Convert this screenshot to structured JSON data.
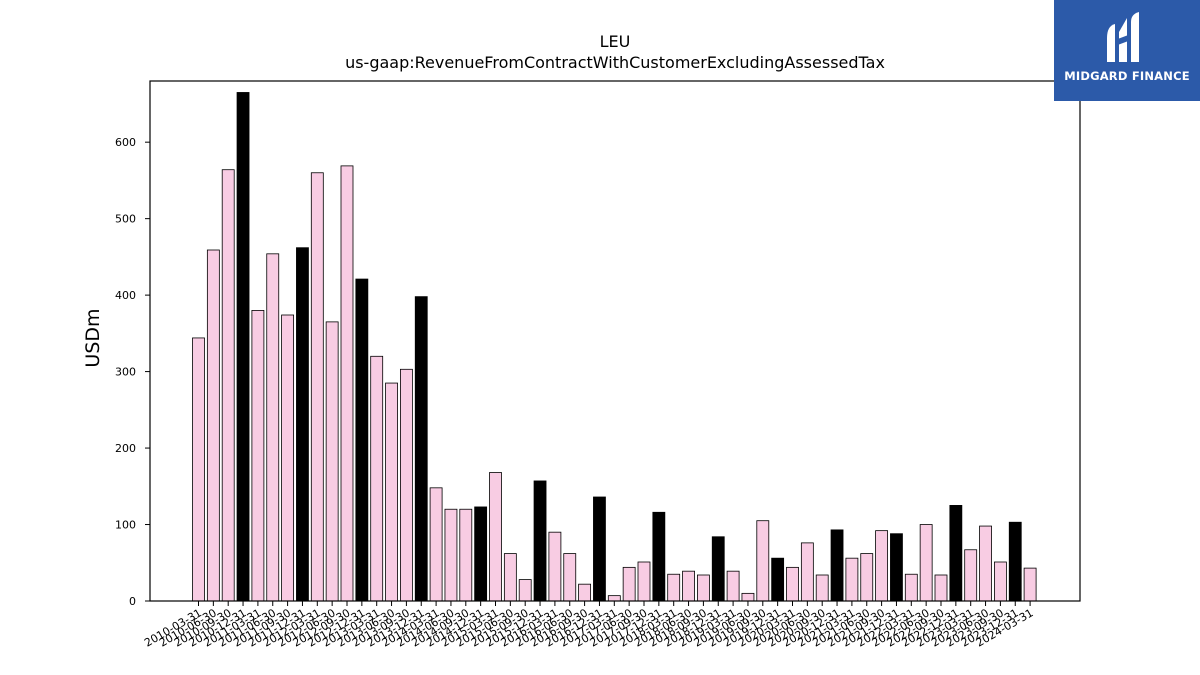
{
  "chart_data": {
    "type": "bar",
    "title": "LEU",
    "subtitle": "us-gaap:RevenueFromContractWithCustomerExcludingAssessedTax",
    "xlabel": "",
    "ylabel": "USDm",
    "ylim": [
      0,
      680
    ],
    "yticks": [
      0,
      100,
      200,
      300,
      400,
      500,
      600
    ],
    "grid": false,
    "legend": "none",
    "colors": {
      "quarter": "#f8cce3",
      "fiscal_year_end": "#000000",
      "edge": "#000000"
    },
    "categories": [
      "2010-03-31",
      "2010-06-30",
      "2010-09-30",
      "2010-12-31",
      "2011-03-31",
      "2011-06-30",
      "2011-09-30",
      "2011-12-31",
      "2012-03-31",
      "2012-06-30",
      "2012-09-30",
      "2012-12-31",
      "2013-03-31",
      "2013-06-30",
      "2013-09-30",
      "2013-12-31",
      "2014-03-31",
      "2014-06-30",
      "2014-09-30",
      "2014-12-31",
      "2015-03-31",
      "2015-06-30",
      "2015-09-30",
      "2015-12-31",
      "2016-03-31",
      "2016-06-30",
      "2016-09-30",
      "2016-12-31",
      "2017-03-31",
      "2017-06-30",
      "2017-09-30",
      "2017-12-31",
      "2018-03-31",
      "2018-06-30",
      "2018-09-30",
      "2018-12-31",
      "2019-03-31",
      "2019-06-30",
      "2019-09-30",
      "2019-12-31",
      "2020-03-31",
      "2020-06-30",
      "2020-09-30",
      "2020-12-31",
      "2021-03-31",
      "2021-06-30",
      "2021-09-30",
      "2021-12-31",
      "2022-03-31",
      "2022-06-30",
      "2022-09-30",
      "2022-12-31",
      "2023-03-31",
      "2023-06-30",
      "2023-09-30",
      "2023-12-31",
      "2024-03-31"
    ],
    "values": [
      344,
      459,
      564,
      665,
      380,
      454,
      374,
      462,
      560,
      365,
      569,
      421,
      320,
      285,
      303,
      398,
      148,
      120,
      120,
      123,
      168,
      62,
      28,
      157,
      90,
      62,
      22,
      136,
      7,
      44,
      51,
      116,
      35,
      39,
      34,
      84,
      39,
      10,
      105,
      56,
      44,
      76,
      34,
      93,
      56,
      62,
      92,
      88,
      35,
      100,
      34,
      125,
      67,
      98,
      51,
      103,
      43
    ],
    "highlighted": [
      false,
      false,
      false,
      true,
      false,
      false,
      false,
      true,
      false,
      false,
      false,
      true,
      false,
      false,
      false,
      true,
      false,
      false,
      false,
      true,
      false,
      false,
      false,
      true,
      false,
      false,
      false,
      true,
      false,
      false,
      false,
      true,
      false,
      false,
      false,
      true,
      false,
      false,
      false,
      true,
      false,
      false,
      false,
      true,
      false,
      false,
      false,
      true,
      false,
      false,
      false,
      true,
      false,
      false,
      false,
      true,
      false
    ]
  },
  "logo": {
    "text": "MIDGARD FINANCE",
    "icon": "midgard-logo-icon"
  }
}
